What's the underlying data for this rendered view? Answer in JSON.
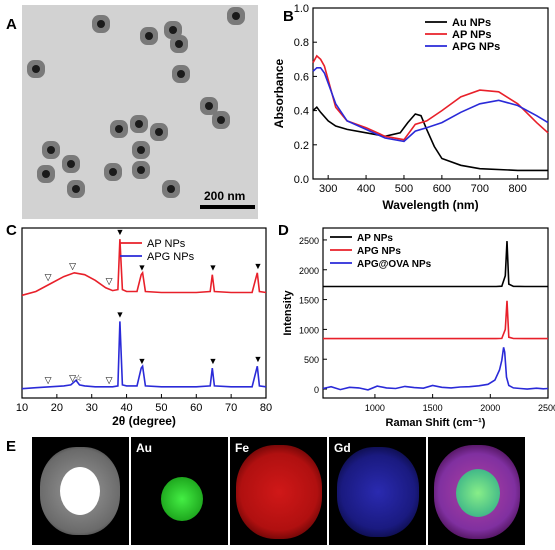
{
  "panels": {
    "a": {
      "letter": "A",
      "scale_bar_label": "200 nm"
    },
    "b": {
      "letter": "B"
    },
    "c": {
      "letter": "C"
    },
    "d": {
      "letter": "D"
    },
    "e": {
      "letter": "E",
      "tiles": [
        "",
        "Au",
        "Fe",
        "Gd",
        ""
      ]
    }
  },
  "colors": {
    "black": "#000000",
    "red": "#e8202a",
    "blue": "#2a2ad8"
  },
  "chart_data": [
    {
      "type": "line",
      "panel": "B",
      "xlabel": "Wavelength (nm)",
      "ylabel": "Absorbance",
      "xlim": [
        260,
        880
      ],
      "ylim": [
        0.0,
        1.0
      ],
      "xticks": [
        300,
        400,
        500,
        600,
        700,
        800
      ],
      "yticks": [
        0.0,
        0.2,
        0.4,
        0.6,
        0.8,
        1.0
      ],
      "legend_position": "top-right",
      "series": [
        {
          "name": "Au NPs",
          "color": "#000000",
          "x": [
            260,
            270,
            280,
            300,
            320,
            350,
            400,
            450,
            490,
            510,
            530,
            545,
            560,
            580,
            600,
            650,
            700,
            800,
            880
          ],
          "y": [
            0.4,
            0.42,
            0.39,
            0.34,
            0.31,
            0.29,
            0.27,
            0.25,
            0.27,
            0.33,
            0.38,
            0.37,
            0.29,
            0.19,
            0.12,
            0.08,
            0.06,
            0.05,
            0.05
          ]
        },
        {
          "name": "AP NPs",
          "color": "#e8202a",
          "x": [
            260,
            270,
            280,
            290,
            300,
            320,
            350,
            400,
            450,
            500,
            530,
            560,
            600,
            650,
            700,
            750,
            800,
            850,
            880
          ],
          "y": [
            0.68,
            0.72,
            0.7,
            0.66,
            0.58,
            0.42,
            0.34,
            0.3,
            0.25,
            0.23,
            0.32,
            0.34,
            0.4,
            0.48,
            0.52,
            0.51,
            0.44,
            0.33,
            0.27
          ]
        },
        {
          "name": "APG NPs",
          "color": "#2a2ad8",
          "x": [
            260,
            270,
            280,
            290,
            300,
            320,
            350,
            400,
            450,
            500,
            530,
            560,
            600,
            650,
            700,
            750,
            800,
            850,
            880
          ],
          "y": [
            0.63,
            0.65,
            0.65,
            0.62,
            0.56,
            0.44,
            0.34,
            0.29,
            0.24,
            0.22,
            0.28,
            0.3,
            0.33,
            0.39,
            0.44,
            0.46,
            0.43,
            0.37,
            0.33
          ]
        }
      ]
    },
    {
      "type": "line",
      "panel": "C",
      "xlabel": "2θ (degree)",
      "ylabel": "",
      "xlim": [
        10,
        80
      ],
      "xticks": [
        10,
        20,
        30,
        40,
        50,
        60,
        70,
        80
      ],
      "legend_position": "top-right",
      "series": [
        {
          "name": "AP NPs",
          "color": "#e8202a",
          "offset": 100,
          "x": [
            10,
            14,
            18,
            22,
            25,
            28,
            31,
            34,
            36,
            37.5,
            38.1,
            38.8,
            40,
            43,
            44.2,
            44.6,
            45.4,
            50,
            55,
            60,
            64,
            64.6,
            65.2,
            70,
            76,
            77.5,
            78.1,
            80
          ],
          "y": [
            0,
            4,
            12,
            20,
            24,
            22,
            16,
            8,
            5,
            6,
            60,
            6,
            4,
            4,
            22,
            24,
            4,
            3,
            3,
            3,
            4,
            22,
            4,
            3,
            3,
            24,
            4,
            3
          ]
        },
        {
          "name": "APG NPs",
          "color": "#2a2ad8",
          "offset": 0,
          "x": [
            10,
            14,
            18,
            22,
            24,
            25.5,
            26.5,
            28,
            31,
            34,
            36,
            37.5,
            38.1,
            38.8,
            40,
            43,
            44.2,
            44.6,
            45.4,
            50,
            55,
            60,
            64,
            64.6,
            65.2,
            70,
            76,
            77.5,
            78.1,
            80
          ],
          "y": [
            0,
            1,
            2,
            3,
            4,
            9,
            4,
            3,
            2,
            2,
            2,
            3,
            72,
            4,
            3,
            3,
            22,
            24,
            3,
            2,
            2,
            2,
            3,
            22,
            3,
            2,
            2,
            24,
            3,
            2
          ]
        }
      ],
      "markers": [
        {
          "symbol": "▼",
          "x": 38.1,
          "series": "AP NPs"
        },
        {
          "symbol": "▼",
          "x": 44.4,
          "series": "AP NPs"
        },
        {
          "symbol": "▼",
          "x": 64.8,
          "series": "AP NPs"
        },
        {
          "symbol": "▼",
          "x": 77.7,
          "series": "AP NPs"
        },
        {
          "symbol": "▽",
          "x": 17.5,
          "series": "AP NPs"
        },
        {
          "symbol": "▽",
          "x": 24.5,
          "series": "AP NPs"
        },
        {
          "symbol": "▽",
          "x": 35,
          "series": "AP NPs"
        },
        {
          "symbol": "▼",
          "x": 38.1,
          "series": "APG NPs"
        },
        {
          "symbol": "▼",
          "x": 44.4,
          "series": "APG NPs"
        },
        {
          "symbol": "▼",
          "x": 64.8,
          "series": "APG NPs"
        },
        {
          "symbol": "▼",
          "x": 77.7,
          "series": "APG NPs"
        },
        {
          "symbol": "▽",
          "x": 17.5,
          "series": "APG NPs"
        },
        {
          "symbol": "▽",
          "x": 24.5,
          "series": "APG NPs"
        },
        {
          "symbol": "☆",
          "x": 26.2,
          "series": "APG NPs"
        },
        {
          "symbol": "▽",
          "x": 35,
          "series": "APG NPs"
        }
      ]
    },
    {
      "type": "line",
      "panel": "D",
      "xlabel": "Raman Shift (cm⁻¹)",
      "ylabel": "Intensity",
      "xlim": [
        550,
        2500
      ],
      "ylim": [
        -150,
        2700
      ],
      "xticks": [
        1000,
        1500,
        2000,
        2500
      ],
      "yticks": [
        0,
        500,
        1000,
        1500,
        2000,
        2500
      ],
      "legend_position": "top-left",
      "series": [
        {
          "name": "AP NPs",
          "color": "#000000",
          "x": [
            550,
            700,
            900,
            1100,
            1300,
            1500,
            1700,
            1900,
            2050,
            2100,
            2130,
            2145,
            2160,
            2200,
            2300,
            2400,
            2500
          ],
          "y": [
            1720,
            1720,
            1720,
            1720,
            1720,
            1720,
            1720,
            1720,
            1720,
            1725,
            1900,
            2480,
            1760,
            1722,
            1720,
            1720,
            1720
          ]
        },
        {
          "name": "APG NPs",
          "color": "#e8202a",
          "x": [
            550,
            700,
            900,
            1100,
            1300,
            1500,
            1700,
            1900,
            2050,
            2100,
            2130,
            2145,
            2160,
            2200,
            2300,
            2400,
            2500
          ],
          "y": [
            845,
            845,
            845,
            845,
            845,
            845,
            845,
            845,
            845,
            850,
            1000,
            1480,
            870,
            848,
            845,
            845,
            845
          ]
        },
        {
          "name": "APG@OVA NPs",
          "color": "#2a2ad8",
          "x": [
            550,
            620,
            700,
            780,
            860,
            940,
            1020,
            1100,
            1180,
            1260,
            1340,
            1420,
            1500,
            1580,
            1660,
            1740,
            1820,
            1900,
            1980,
            2040,
            2080,
            2100,
            2115,
            2125,
            2140,
            2160,
            2200,
            2260,
            2320,
            2400,
            2460,
            2500
          ],
          "y": [
            10,
            40,
            -10,
            30,
            20,
            -15,
            50,
            20,
            10,
            45,
            25,
            15,
            60,
            30,
            20,
            35,
            40,
            55,
            80,
            150,
            320,
            480,
            700,
            620,
            200,
            60,
            20,
            10,
            0,
            15,
            5,
            10
          ]
        }
      ]
    }
  ]
}
